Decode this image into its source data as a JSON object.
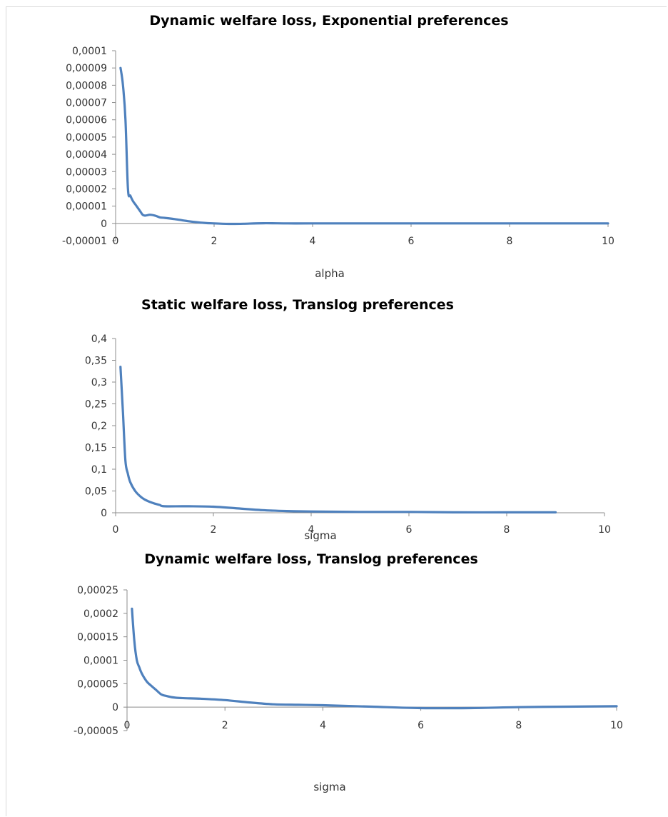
{
  "colors": {
    "series": "#4f81bd",
    "axis": "#8c8c8c",
    "text": "#333333"
  },
  "chart_data": [
    {
      "type": "line",
      "title": "Dynamic welfare loss, Exponential preferences",
      "xlabel": "alpha",
      "ylabel": "",
      "xlim": [
        0,
        10
      ],
      "ylim": [
        -1e-05,
        0.0001
      ],
      "xticks": [
        {
          "value": 0,
          "label": "0"
        },
        {
          "value": 2,
          "label": "2"
        },
        {
          "value": 4,
          "label": "4"
        },
        {
          "value": 6,
          "label": "6"
        },
        {
          "value": 8,
          "label": "8"
        },
        {
          "value": 10,
          "label": "10"
        }
      ],
      "yticks": [
        {
          "value": -1e-05,
          "label": "-0,00001"
        },
        {
          "value": 0,
          "label": "0"
        },
        {
          "value": 1e-05,
          "label": "0,00001"
        },
        {
          "value": 2e-05,
          "label": "0,00002"
        },
        {
          "value": 3e-05,
          "label": "0,00003"
        },
        {
          "value": 4e-05,
          "label": "0,00004"
        },
        {
          "value": 5e-05,
          "label": "0,00005"
        },
        {
          "value": 6e-05,
          "label": "0,00006"
        },
        {
          "value": 7e-05,
          "label": "0,00007"
        },
        {
          "value": 8e-05,
          "label": "0,00008"
        },
        {
          "value": 9e-05,
          "label": "0,00009"
        },
        {
          "value": 0.0001,
          "label": "0,0001"
        }
      ],
      "grid": false,
      "legend": "none",
      "x": [
        0.1,
        0.15,
        0.2,
        0.25,
        0.3,
        0.35,
        0.4,
        0.45,
        0.5,
        0.55,
        0.6,
        0.7,
        0.8,
        0.9,
        1.0,
        1.2,
        1.5,
        1.8,
        2.0,
        2.3,
        2.6,
        3.0,
        3.5,
        4.0,
        5.0,
        6.0,
        7.0,
        8.0,
        9.0,
        10.0
      ],
      "values": [
        9e-05,
        8e-05,
        6e-05,
        2e-05,
        1.6e-05,
        1.3e-05,
        1.1e-05,
        9e-06,
        7e-06,
        5e-06,
        4.5e-06,
        5e-06,
        4.5e-06,
        3.5e-06,
        3.2e-06,
        2.5e-06,
        1.2e-06,
        3e-07,
        0.0,
        -3e-07,
        -2e-07,
        1e-07,
        0.0,
        0.0,
        0.0,
        0.0,
        0.0,
        0.0,
        0.0,
        0.0
      ]
    },
    {
      "type": "line",
      "title": "Static welfare loss, Translog preferences",
      "xlabel": "sigma",
      "ylabel": "",
      "xlim": [
        0,
        10
      ],
      "ylim": [
        0,
        0.4
      ],
      "xticks": [
        {
          "value": 0,
          "label": "0"
        },
        {
          "value": 2,
          "label": "2"
        },
        {
          "value": 4,
          "label": "4"
        },
        {
          "value": 6,
          "label": "6"
        },
        {
          "value": 8,
          "label": "8"
        },
        {
          "value": 10,
          "label": "10"
        }
      ],
      "yticks": [
        {
          "value": 0,
          "label": "0"
        },
        {
          "value": 0.05,
          "label": "0,05"
        },
        {
          "value": 0.1,
          "label": "0,1"
        },
        {
          "value": 0.15,
          "label": "0,15"
        },
        {
          "value": 0.2,
          "label": "0,2"
        },
        {
          "value": 0.25,
          "label": "0,25"
        },
        {
          "value": 0.3,
          "label": "0,3"
        },
        {
          "value": 0.35,
          "label": "0,35"
        },
        {
          "value": 0.4,
          "label": "0,4"
        }
      ],
      "grid": false,
      "legend": "none",
      "x": [
        0.1,
        0.15,
        0.2,
        0.25,
        0.3,
        0.4,
        0.5,
        0.6,
        0.7,
        0.8,
        0.9,
        1.0,
        1.5,
        2.0,
        2.5,
        3.0,
        3.5,
        4.0,
        5.0,
        6.0,
        7.0,
        8.0,
        9.0
      ],
      "values": [
        0.335,
        0.23,
        0.12,
        0.09,
        0.07,
        0.05,
        0.038,
        0.03,
        0.025,
        0.021,
        0.018,
        0.015,
        0.015,
        0.014,
        0.01,
        0.006,
        0.004,
        0.003,
        0.002,
        0.002,
        0.001,
        0.001,
        0.001
      ]
    },
    {
      "type": "line",
      "title": "Dynamic welfare loss, Translog preferences",
      "xlabel": "sigma",
      "ylabel": "",
      "xlim": [
        0,
        10
      ],
      "ylim": [
        -5e-05,
        0.00025
      ],
      "xticks": [
        {
          "value": 0,
          "label": "0"
        },
        {
          "value": 2,
          "label": "2"
        },
        {
          "value": 4,
          "label": "4"
        },
        {
          "value": 6,
          "label": "6"
        },
        {
          "value": 8,
          "label": "8"
        },
        {
          "value": 10,
          "label": "10"
        }
      ],
      "yticks": [
        {
          "value": -5e-05,
          "label": "-0,00005"
        },
        {
          "value": 0,
          "label": "0"
        },
        {
          "value": 5e-05,
          "label": "0,00005"
        },
        {
          "value": 0.0001,
          "label": "0,0001"
        },
        {
          "value": 0.00015,
          "label": "0,00015"
        },
        {
          "value": 0.0002,
          "label": "0,0002"
        },
        {
          "value": 0.00025,
          "label": "0,00025"
        }
      ],
      "grid": false,
      "legend": "none",
      "x": [
        0.1,
        0.15,
        0.2,
        0.25,
        0.3,
        0.4,
        0.5,
        0.6,
        0.7,
        0.8,
        1.0,
        1.5,
        2.0,
        2.5,
        3.0,
        3.5,
        4.0,
        5.0,
        6.0,
        7.0,
        8.0,
        9.0,
        10.0
      ],
      "values": [
        0.00021,
        0.00014,
        0.0001,
        8.5e-05,
        7.2e-05,
        5.5e-05,
        4.5e-05,
        3.6e-05,
        2.7e-05,
        2.4e-05,
        2e-05,
        1.8e-05,
        1.5e-05,
        1e-05,
        6e-06,
        5e-06,
        4e-06,
        1e-06,
        -2e-06,
        -2e-06,
        0.0,
        1e-06,
        2e-06
      ]
    }
  ]
}
